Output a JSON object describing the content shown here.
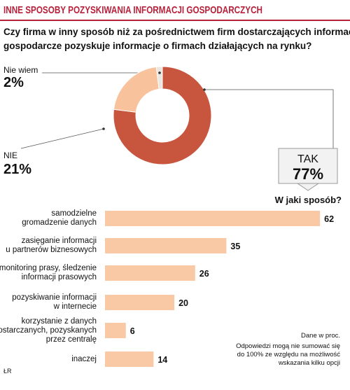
{
  "title": "INNE SPOSOBY POZYSKIWANIA INFORMACJI GOSPODARCZYCH",
  "notes": [
    "Dane w proc.",
    "Odpowiedzi mogą nie sumować się",
    "do 100% ze względu na możliwość",
    "wskazania kilku opcji"
  ],
  "source": "ŁR",
  "chart_data": [
    {
      "type": "pie",
      "title": [
        "Czy firma w inny sposób niż za pośrednictwem firm dostarczających informacje",
        "gospodarcze pozyskuje informacje o firmach działających na rynku?"
      ],
      "categories": [
        "Nie wiem",
        "NIE",
        "TAK"
      ],
      "values": [
        2,
        21,
        77
      ],
      "value_labels": [
        "2%",
        "21%",
        "77%"
      ],
      "colors": [
        "#ebe6e0",
        "#f8c29d",
        "#c8553e"
      ]
    },
    {
      "type": "bar",
      "title": "W jaki sposób?",
      "categories": [
        "samodzielne\ngromadzenie danych",
        "zasięganie informacji\nu partnerów biznesowych",
        "monitoring prasy, śledzenie\ninformacji prasowych",
        "pozyskiwanie informacji\nw internecie",
        "korzystanie z danych\ndostarczanych, pozyskanych\nprzez centralę",
        "inaczej"
      ],
      "values": [
        62,
        35,
        26,
        20,
        6,
        14
      ],
      "color": "#f9c9a5",
      "xlim": [
        0,
        65
      ]
    }
  ]
}
